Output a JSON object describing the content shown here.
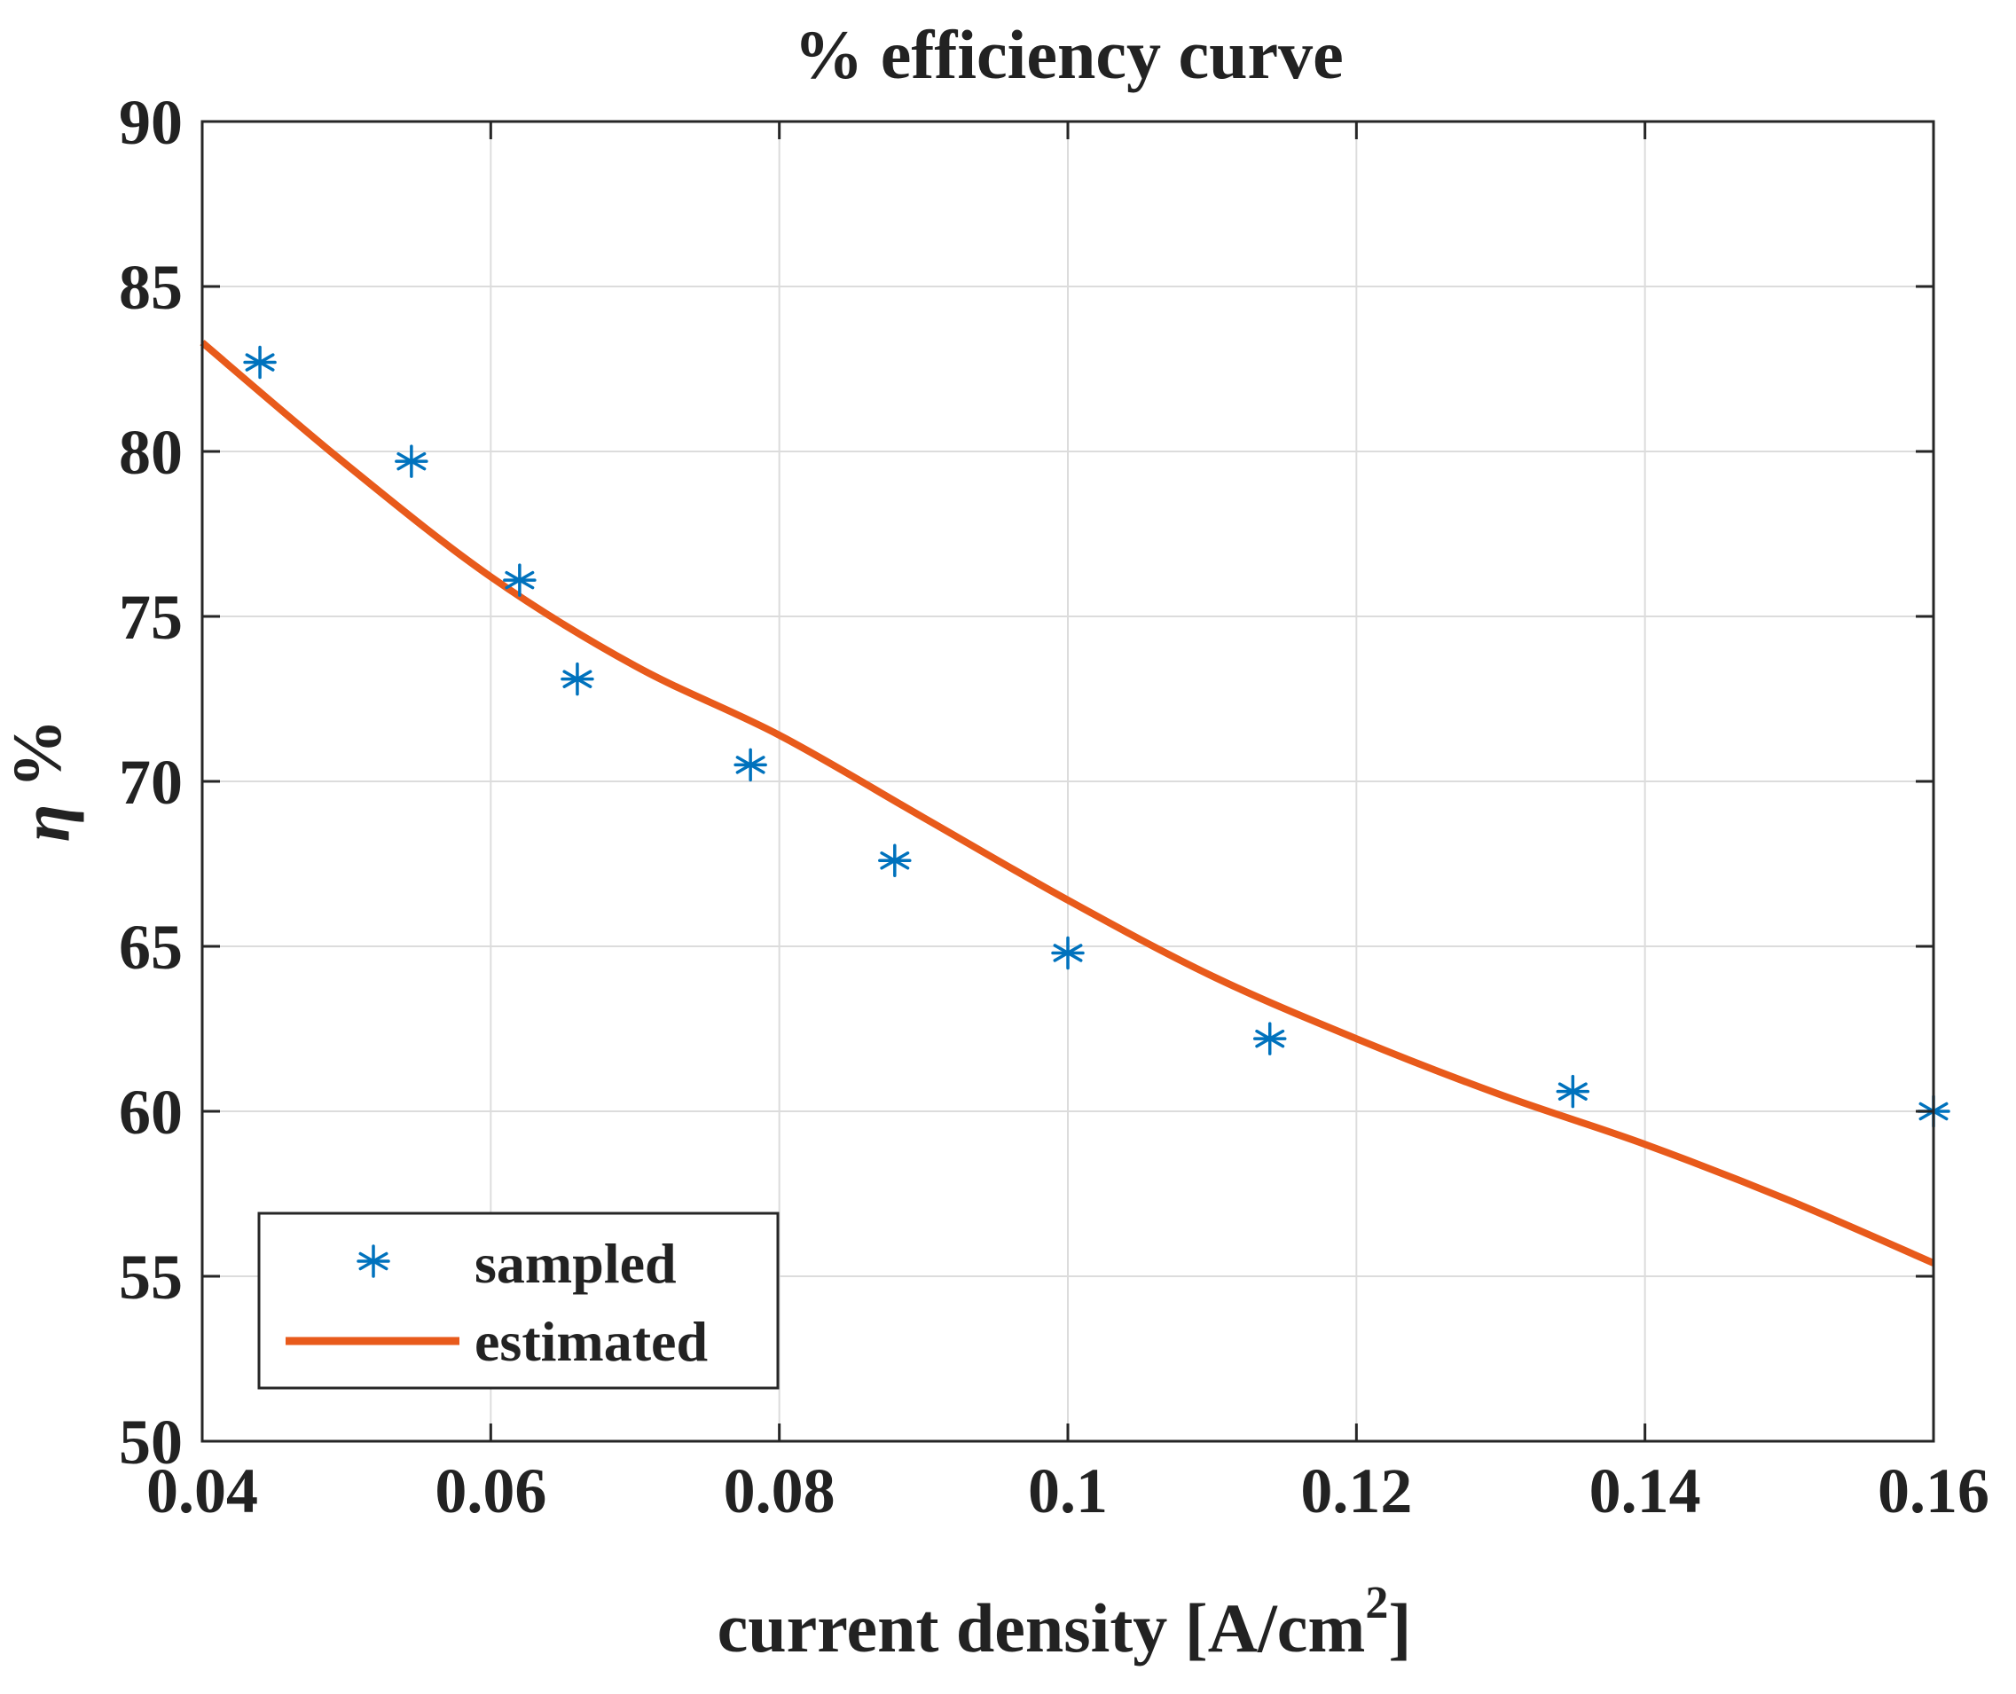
{
  "chart_data": {
    "type": "scatter",
    "title": "% efficiency curve",
    "xlabel": {
      "main": "current density [A/cm",
      "superscript": "2",
      "close": "]"
    },
    "ylabel": {
      "symbol": "η",
      "unit": "%"
    },
    "xlim": [
      0.04,
      0.16
    ],
    "ylim": [
      50,
      90
    ],
    "xticks": [
      0.04,
      0.06,
      0.08,
      0.1,
      0.12,
      0.14,
      0.16
    ],
    "xtick_labels": [
      "0.04",
      "0.06",
      "0.08",
      "0.1",
      "0.12",
      "0.14",
      "0.16"
    ],
    "yticks": [
      50,
      55,
      60,
      65,
      70,
      75,
      80,
      85,
      90
    ],
    "ytick_labels": [
      "50",
      "55",
      "60",
      "65",
      "70",
      "75",
      "80",
      "85",
      "90"
    ],
    "grid": true,
    "legend_position": "bottom-left",
    "series": [
      {
        "name": "sampled",
        "kind": "marker",
        "marker": "asterisk",
        "color": "#0072BD",
        "x": [
          0.044,
          0.0545,
          0.062,
          0.066,
          0.078,
          0.088,
          0.1,
          0.114,
          0.135,
          0.16
        ],
        "y": [
          82.7,
          79.7,
          76.1,
          73.1,
          70.5,
          67.6,
          64.8,
          62.2,
          60.6,
          60.0
        ]
      },
      {
        "name": "estimated",
        "kind": "line",
        "color": "#E85A1B",
        "x": [
          0.04,
          0.05,
          0.06,
          0.07,
          0.08,
          0.09,
          0.1,
          0.11,
          0.12,
          0.13,
          0.14,
          0.15,
          0.16
        ],
        "y": [
          83.3,
          79.6,
          76.2,
          73.5,
          71.4,
          68.9,
          66.4,
          64.1,
          62.2,
          60.5,
          59.0,
          57.3,
          55.4
        ]
      }
    ]
  }
}
